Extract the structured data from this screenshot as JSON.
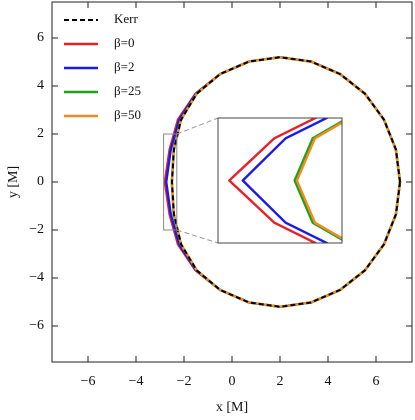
{
  "chart_data": {
    "type": "line",
    "x_label": "x [M]",
    "y_label": "y [M]",
    "xlim": [
      -7.5,
      7.5
    ],
    "ylim": [
      -7.5,
      7.5
    ],
    "xticks": [
      {
        "value": -6,
        "label": "−6"
      },
      {
        "value": -4,
        "label": "−4"
      },
      {
        "value": -2,
        "label": "−2"
      },
      0,
      2,
      4,
      6
    ],
    "yticks": [
      {
        "value": -6,
        "label": "−6"
      },
      {
        "value": -4,
        "label": "−4"
      },
      {
        "value": -2,
        "label": "−2"
      },
      0,
      2,
      4,
      6
    ],
    "legend": "upper left",
    "inset": {
      "xlim": [
        -2.85,
        -2.3
      ],
      "ylim": [
        -2,
        2
      ]
    },
    "series": [
      {
        "name": "β=0",
        "color": "#e8202a",
        "x": [
          7.0,
          6.83,
          6.33,
          5.54,
          4.5,
          3.29,
          2.0,
          0.71,
          -0.49,
          -1.52,
          -2.25,
          -2.6,
          -2.8,
          -2.6,
          -2.25,
          -1.52,
          -0.49,
          0.71,
          2.0,
          3.29,
          4.5,
          5.54,
          6.33,
          6.83,
          7.0
        ],
        "y": [
          0,
          1.35,
          2.6,
          3.68,
          4.5,
          5.02,
          5.2,
          5.02,
          4.5,
          3.68,
          2.6,
          1.35,
          0,
          -1.35,
          -2.6,
          -3.68,
          -4.5,
          -5.02,
          -5.2,
          -5.02,
          -4.5,
          -3.68,
          -2.6,
          -1.35,
          0
        ]
      },
      {
        "name": "β=2",
        "color": "#1a1ae6",
        "x": [
          7.0,
          6.83,
          6.33,
          5.54,
          4.5,
          3.29,
          2.0,
          0.71,
          -0.49,
          -1.5,
          -2.2,
          -2.55,
          -2.74,
          -2.55,
          -2.2,
          -1.5,
          -0.49,
          0.71,
          2.0,
          3.29,
          4.5,
          5.54,
          6.33,
          6.83,
          7.0
        ],
        "y": [
          0,
          1.35,
          2.6,
          3.68,
          4.5,
          5.02,
          5.2,
          5.02,
          4.5,
          3.68,
          2.6,
          1.35,
          0,
          -1.35,
          -2.6,
          -3.68,
          -4.5,
          -5.02,
          -5.2,
          -5.02,
          -4.5,
          -3.68,
          -2.6,
          -1.35,
          0
        ]
      },
      {
        "name": "β=25",
        "color": "#1fa01f",
        "x": [
          7.0,
          6.83,
          6.33,
          5.54,
          4.5,
          3.29,
          2.0,
          0.71,
          -0.49,
          -1.47,
          -2.13,
          -2.43,
          -2.51,
          -2.43,
          -2.13,
          -1.47,
          -0.49,
          0.71,
          2.0,
          3.29,
          4.5,
          5.54,
          6.33,
          6.83,
          7.0
        ],
        "y": [
          0,
          1.35,
          2.6,
          3.68,
          4.5,
          5.02,
          5.2,
          5.02,
          4.5,
          3.68,
          2.6,
          1.35,
          0,
          -1.35,
          -2.6,
          -3.68,
          -4.5,
          -5.02,
          -5.2,
          -5.02,
          -4.5,
          -3.68,
          -2.6,
          -1.35,
          0
        ]
      },
      {
        "name": "β=50",
        "color": "#f08c1e",
        "x": [
          7.0,
          6.83,
          6.33,
          5.54,
          4.5,
          3.29,
          2.0,
          0.71,
          -0.49,
          -1.47,
          -2.12,
          -2.42,
          -2.5,
          -2.42,
          -2.12,
          -1.47,
          -0.49,
          0.71,
          2.0,
          3.29,
          4.5,
          5.54,
          6.33,
          6.83,
          7.0
        ],
        "y": [
          0,
          1.35,
          2.6,
          3.68,
          4.5,
          5.02,
          5.2,
          5.02,
          4.5,
          3.68,
          2.6,
          1.35,
          0,
          -1.35,
          -2.6,
          -3.68,
          -4.5,
          -5.02,
          -5.2,
          -5.02,
          -4.5,
          -3.68,
          -2.6,
          -1.35,
          0
        ]
      },
      {
        "name": "Kerr",
        "color": "#000000",
        "dashed": true,
        "x": [
          7.0,
          6.83,
          6.33,
          5.54,
          4.5,
          3.29,
          2.0,
          0.71,
          -0.49,
          -1.47,
          -2.12,
          -2.42,
          -2.5,
          -2.42,
          -2.12,
          -1.47,
          -0.49,
          0.71,
          2.0,
          3.29,
          4.5,
          5.54,
          6.33,
          6.83,
          7.0
        ],
        "y": [
          0,
          1.35,
          2.6,
          3.68,
          4.5,
          5.02,
          5.2,
          5.02,
          4.5,
          3.68,
          2.6,
          1.35,
          0,
          -1.35,
          -2.6,
          -3.68,
          -4.5,
          -5.02,
          -5.2,
          -5.02,
          -4.5,
          -3.68,
          -2.6,
          -1.35,
          0
        ]
      }
    ]
  }
}
